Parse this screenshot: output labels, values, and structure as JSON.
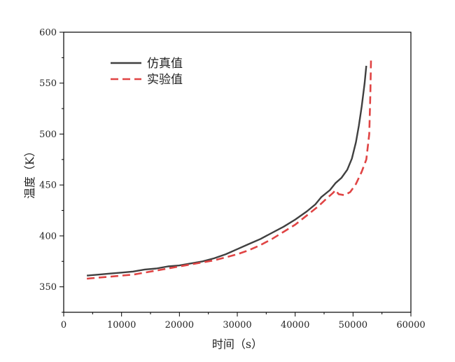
{
  "chart_data": {
    "type": "line",
    "xlabel": "时间（s）",
    "ylabel": "温度（K）",
    "xlim": [
      0,
      60000
    ],
    "ylim": [
      325,
      600
    ],
    "x_ticks": [
      0,
      10000,
      20000,
      30000,
      40000,
      50000,
      60000
    ],
    "x_tick_labels": [
      "0",
      "10000",
      "20000",
      "30000",
      "40000",
      "50000",
      "60000"
    ],
    "y_ticks": [
      350,
      400,
      450,
      500,
      550,
      600
    ],
    "y_tick_labels": [
      "350",
      "400",
      "450",
      "500",
      "550",
      "600"
    ],
    "grid": false,
    "legend": "top-left",
    "series": [
      {
        "name": "仿真值",
        "color": "#404040",
        "style": "solid",
        "x": [
          4000,
          6000,
          8000,
          10000,
          12000,
          14000,
          16000,
          18000,
          20000,
          22000,
          24000,
          26000,
          28000,
          30000,
          32000,
          34000,
          36000,
          38000,
          40000,
          42000,
          43500,
          44500,
          46000,
          47000,
          48000,
          49000,
          49800,
          50500,
          51000,
          51500,
          52000,
          52300
        ],
        "y": [
          361,
          362,
          363,
          364,
          365,
          367,
          368,
          370,
          371,
          373,
          375,
          378,
          382,
          387,
          392,
          397,
          403,
          409,
          416,
          424,
          431,
          438,
          445,
          452,
          457,
          465,
          476,
          492,
          508,
          527,
          550,
          567
        ]
      },
      {
        "name": "实验值",
        "color": "#e04444",
        "style": "dashed",
        "x": [
          4000,
          6000,
          8000,
          10000,
          12000,
          14000,
          16000,
          18000,
          20000,
          22000,
          24000,
          26000,
          28000,
          30000,
          32000,
          34000,
          36000,
          38000,
          40000,
          42000,
          44000,
          45500,
          46500,
          47000,
          47500,
          48500,
          49500,
          50500,
          51500,
          52300,
          52800,
          53000,
          53100
        ],
        "y": [
          358,
          359,
          360,
          361,
          362,
          364,
          366,
          368,
          370,
          372,
          374,
          376,
          379,
          382,
          386,
          391,
          397,
          404,
          411,
          420,
          429,
          437,
          442,
          445,
          441,
          440,
          443,
          451,
          463,
          475,
          500,
          540,
          573
        ]
      }
    ]
  }
}
